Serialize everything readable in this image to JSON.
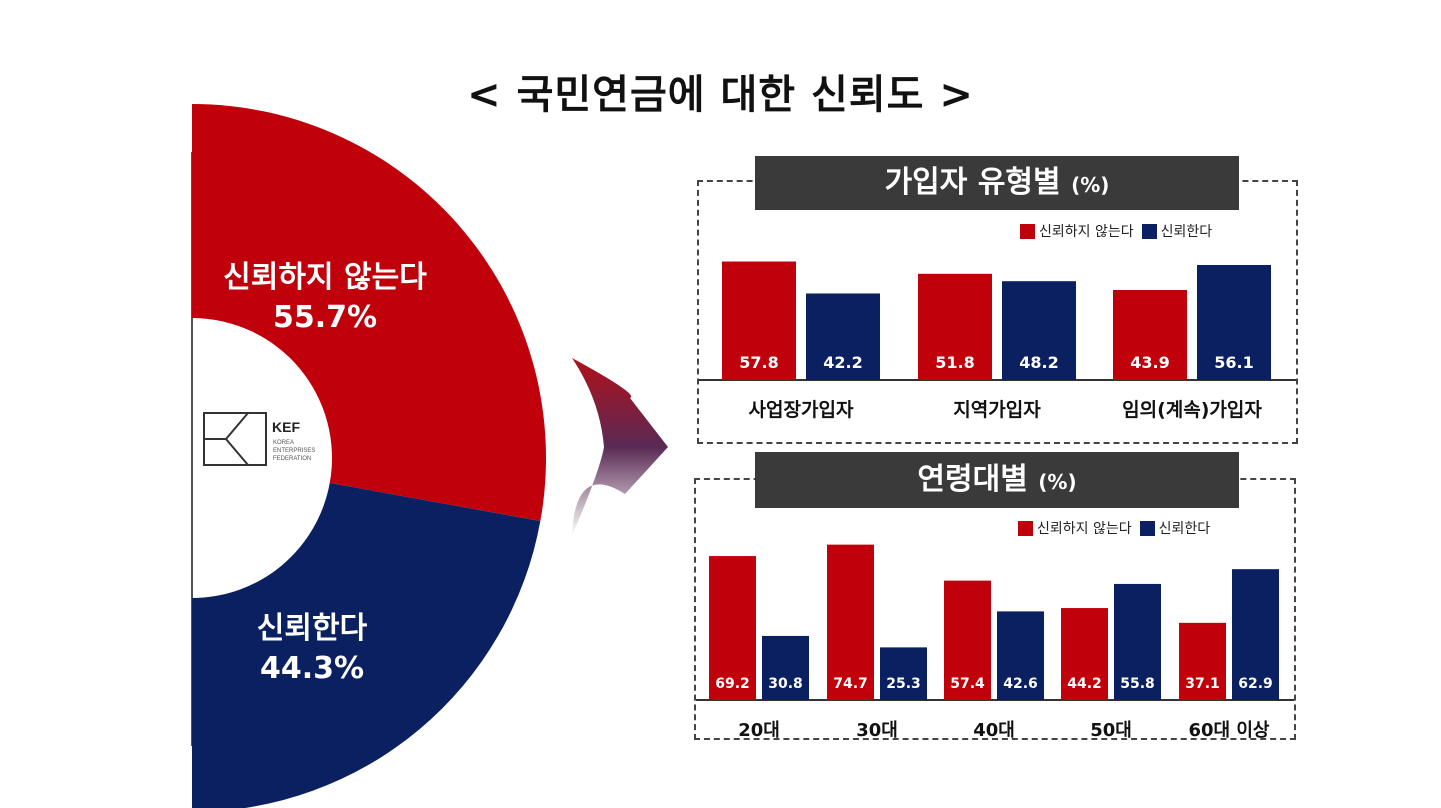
{
  "title": "< 국민연금에 대한 신뢰도 >",
  "colors": {
    "distrust": "#c0000b",
    "trust": "#0b2060",
    "panel_title_bg": "#3a3a3a"
  },
  "logo": {
    "mark": "KEF",
    "line1": "KOREA",
    "line2": "ENTERPRISES",
    "line3": "FEDERATION"
  },
  "chart_data": [
    {
      "type": "pie",
      "title": "",
      "slices": [
        {
          "label": "신뢰하지 않는다",
          "value": 55.7,
          "value_label": "55.7%"
        },
        {
          "label": "신뢰한다",
          "value": 44.3,
          "value_label": "44.3%"
        }
      ]
    },
    {
      "type": "bar",
      "title": "가입자 유형별",
      "unit": "(%)",
      "categories": [
        "사업장가입자",
        "지역가입자",
        "임의(계속)가입자"
      ],
      "series": [
        {
          "name": "신뢰하지 않는다",
          "values": [
            57.8,
            51.8,
            43.9
          ]
        },
        {
          "name": "신뢰한다",
          "values": [
            42.2,
            48.2,
            56.1
          ]
        }
      ]
    },
    {
      "type": "bar",
      "title": "연령대별",
      "unit": "(%)",
      "categories": [
        "20대",
        "30대",
        "40대",
        "50대",
        "60대 이상"
      ],
      "series": [
        {
          "name": "신뢰하지 않는다",
          "values": [
            69.2,
            74.7,
            57.4,
            44.2,
            37.1
          ]
        },
        {
          "name": "신뢰한다",
          "values": [
            30.8,
            25.3,
            42.6,
            55.8,
            62.9
          ]
        }
      ]
    }
  ]
}
